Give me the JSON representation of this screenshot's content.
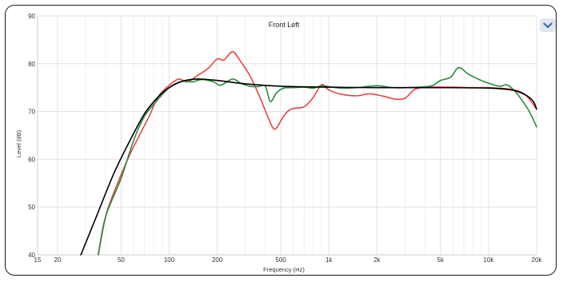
{
  "chart_data": {
    "type": "line",
    "title": "Front Left",
    "xlabel": "Frequency (Hz)",
    "ylabel": "Level (dB)",
    "xscale": "log",
    "xlim": [
      15,
      20000
    ],
    "ylim": [
      40,
      90
    ],
    "grid": true,
    "x_ticks": [
      {
        "value": 15,
        "label": "15"
      },
      {
        "value": 20,
        "label": "20"
      },
      {
        "value": 50,
        "label": "50"
      },
      {
        "value": 100,
        "label": "100"
      },
      {
        "value": 200,
        "label": "200"
      },
      {
        "value": 500,
        "label": "500"
      },
      {
        "value": 1000,
        "label": "1k"
      },
      {
        "value": 2000,
        "label": "2k"
      },
      {
        "value": 5000,
        "label": "5k"
      },
      {
        "value": 10000,
        "label": "10k"
      },
      {
        "value": 20000,
        "label": "20k"
      }
    ],
    "x_minor_grid": [
      30,
      40,
      60,
      70,
      80,
      90,
      300,
      400,
      600,
      700,
      800,
      900,
      3000,
      4000,
      6000,
      7000,
      8000,
      9000
    ],
    "y_ticks": [
      40,
      50,
      60,
      70,
      80,
      90
    ],
    "series": [
      {
        "color": "#000000",
        "points": [
          [
            28,
            40
          ],
          [
            35,
            48
          ],
          [
            45,
            57
          ],
          [
            55,
            63
          ],
          [
            70,
            69.5
          ],
          [
            85,
            73
          ],
          [
            100,
            75
          ],
          [
            120,
            76.3
          ],
          [
            150,
            76.8
          ],
          [
            200,
            76.5
          ],
          [
            300,
            75.8
          ],
          [
            500,
            75.3
          ],
          [
            1000,
            75.1
          ],
          [
            2000,
            75.0
          ],
          [
            5000,
            75.0
          ],
          [
            10000,
            74.9
          ],
          [
            14000,
            74.5
          ],
          [
            17000,
            73.5
          ],
          [
            19000,
            72.2
          ],
          [
            20000,
            70.5
          ]
        ]
      },
      {
        "color": "#e84545",
        "points": [
          [
            36,
            40
          ],
          [
            40,
            48
          ],
          [
            45,
            53
          ],
          [
            55,
            60
          ],
          [
            65,
            65
          ],
          [
            75,
            69
          ],
          [
            85,
            73
          ],
          [
            100,
            75.5
          ],
          [
            115,
            76.8
          ],
          [
            130,
            76.2
          ],
          [
            150,
            77.5
          ],
          [
            175,
            79
          ],
          [
            200,
            81
          ],
          [
            220,
            80.8
          ],
          [
            250,
            82.5
          ],
          [
            280,
            80.5
          ],
          [
            320,
            77.5
          ],
          [
            370,
            73
          ],
          [
            420,
            68.5
          ],
          [
            460,
            66.3
          ],
          [
            520,
            69
          ],
          [
            580,
            70.5
          ],
          [
            700,
            71
          ],
          [
            800,
            73
          ],
          [
            900,
            75.6
          ],
          [
            1000,
            74.5
          ],
          [
            1200,
            73.6
          ],
          [
            1500,
            73.3
          ],
          [
            1800,
            73.7
          ],
          [
            2200,
            73.2
          ],
          [
            2600,
            72.6
          ],
          [
            3000,
            72.8
          ],
          [
            3400,
            74.5
          ],
          [
            3800,
            75
          ],
          [
            4500,
            75.1
          ],
          [
            6000,
            75.1
          ],
          [
            8000,
            75
          ],
          [
            10000,
            75
          ],
          [
            14000,
            74.6
          ],
          [
            17000,
            73.5
          ],
          [
            20000,
            70.5
          ]
        ]
      },
      {
        "color": "#2a8a3e",
        "points": [
          [
            36,
            40
          ],
          [
            40,
            48
          ],
          [
            50,
            56
          ],
          [
            60,
            64
          ],
          [
            70,
            69
          ],
          [
            85,
            72.5
          ],
          [
            100,
            75
          ],
          [
            120,
            76.3
          ],
          [
            140,
            76.2
          ],
          [
            160,
            76.7
          ],
          [
            190,
            76.2
          ],
          [
            210,
            75.5
          ],
          [
            250,
            76.8
          ],
          [
            280,
            75.9
          ],
          [
            320,
            75.3
          ],
          [
            360,
            75.2
          ],
          [
            400,
            75.3
          ],
          [
            430,
            72.1
          ],
          [
            470,
            73.9
          ],
          [
            520,
            74.9
          ],
          [
            600,
            75
          ],
          [
            700,
            75.1
          ],
          [
            800,
            74.9
          ],
          [
            900,
            75.4
          ],
          [
            1000,
            75.2
          ],
          [
            1200,
            74.9
          ],
          [
            1500,
            75
          ],
          [
            2000,
            75.4
          ],
          [
            2500,
            75
          ],
          [
            3000,
            75
          ],
          [
            4000,
            75.2
          ],
          [
            4500,
            75.5
          ],
          [
            5000,
            76.5
          ],
          [
            5800,
            77.2
          ],
          [
            6500,
            79.2
          ],
          [
            7500,
            77.8
          ],
          [
            9000,
            76.5
          ],
          [
            11000,
            75.5
          ],
          [
            12000,
            75.3
          ],
          [
            13000,
            75.6
          ],
          [
            14500,
            74.4
          ],
          [
            16000,
            72.6
          ],
          [
            18000,
            70
          ],
          [
            20000,
            66.8
          ]
        ]
      }
    ]
  },
  "ui": {
    "menu_button_icon": "chevron-down-icon",
    "accent_color": "#3a6fa8"
  }
}
